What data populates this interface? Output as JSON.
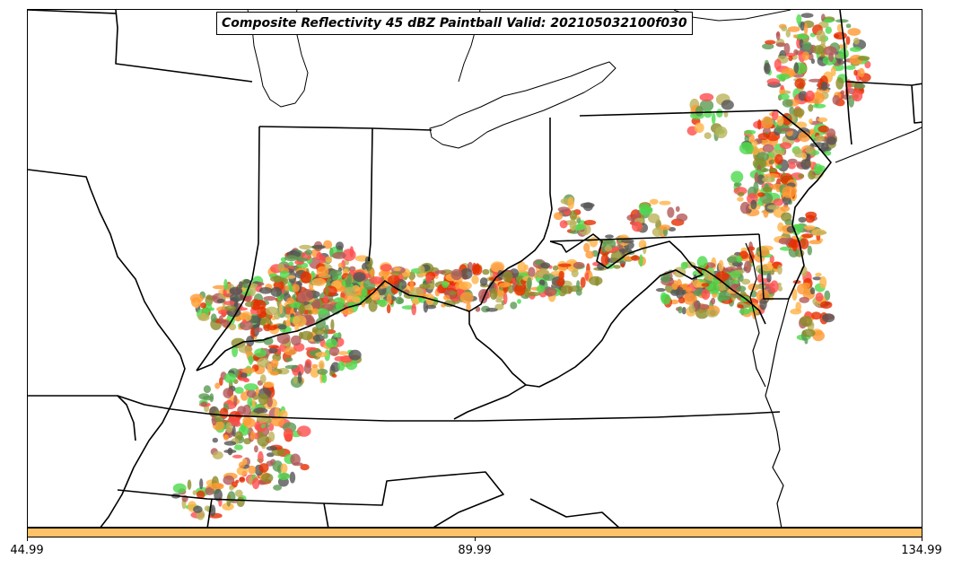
{
  "map": {
    "title": "Composite Reflectivity 45 dBZ Paintball Valid: 202105032100f030",
    "region": "Ohio Valley / Mid-Atlantic United States",
    "colors": {
      "background": "#ffffff",
      "boundaries": "#000000",
      "paintball_members": [
        "#ff4d4d",
        "#4cd94c",
        "#ff9933",
        "#555555",
        "#b35959",
        "#bcb35a",
        "#5b9a52",
        "#e62e00",
        "#ffb347",
        "#8b8b2a"
      ]
    }
  },
  "colorbar": {
    "fill_color": "#ffc266",
    "ticks": [
      "44.99",
      "89.99",
      "134.99"
    ]
  }
}
